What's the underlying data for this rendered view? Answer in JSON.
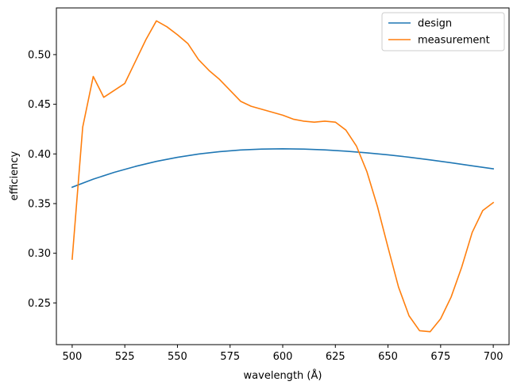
{
  "chart_data": {
    "type": "line",
    "title": "",
    "xlabel": "wavelength (Å)",
    "ylabel": "efficiency",
    "xlim": [
      492.5,
      707.5
    ],
    "ylim": [
      0.208,
      0.547
    ],
    "xticks": [
      500,
      525,
      550,
      575,
      600,
      625,
      650,
      675,
      700
    ],
    "yticks": [
      0.25,
      0.3,
      0.35,
      0.4,
      0.45,
      0.5
    ],
    "ytick_labels": [
      "0.25",
      "0.30",
      "0.35",
      "0.40",
      "0.45",
      "0.50"
    ],
    "grid": false,
    "legend_position": "top-right",
    "series": [
      {
        "name": "design",
        "color": "#1f77b4",
        "x": [
          500,
          510,
          520,
          530,
          540,
          550,
          560,
          570,
          580,
          590,
          600,
          610,
          620,
          630,
          640,
          650,
          660,
          670,
          680,
          690,
          700
        ],
        "y": [
          0.3665,
          0.3746,
          0.3815,
          0.3874,
          0.3925,
          0.3966,
          0.3999,
          0.4023,
          0.404,
          0.4049,
          0.4052,
          0.4049,
          0.4041,
          0.4028,
          0.4011,
          0.3991,
          0.3967,
          0.394,
          0.3911,
          0.388,
          0.385
        ]
      },
      {
        "name": "measurement",
        "color": "#ff7f0e",
        "x": [
          500,
          505,
          510,
          515,
          520,
          525,
          530,
          535,
          540,
          545,
          550,
          555,
          560,
          565,
          570,
          575,
          580,
          585,
          590,
          595,
          600,
          605,
          610,
          615,
          620,
          625,
          630,
          635,
          640,
          645,
          650,
          655,
          660,
          665,
          670,
          675,
          680,
          685,
          690,
          695,
          700
        ],
        "y": [
          0.294,
          0.427,
          0.478,
          0.457,
          0.464,
          0.471,
          0.493,
          0.515,
          0.534,
          0.528,
          0.52,
          0.511,
          0.495,
          0.484,
          0.475,
          0.464,
          0.453,
          0.448,
          0.445,
          0.442,
          0.439,
          0.435,
          0.433,
          0.432,
          0.433,
          0.432,
          0.424,
          0.408,
          0.382,
          0.347,
          0.306,
          0.266,
          0.237,
          0.222,
          0.221,
          0.234,
          0.256,
          0.286,
          0.321,
          0.343,
          0.351
        ]
      }
    ]
  }
}
